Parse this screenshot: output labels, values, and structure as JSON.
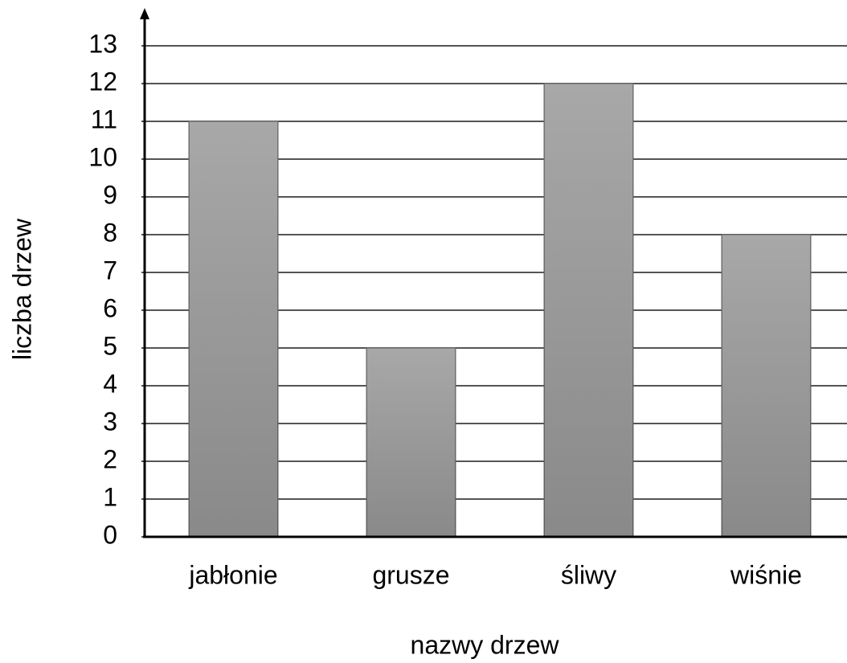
{
  "chart_data": {
    "type": "bar",
    "x_label": "nazwy drzew",
    "y_label": "liczba drzew",
    "categories": [
      "jabłonie",
      "grusze",
      "śliwy",
      "wiśnie"
    ],
    "values": [
      11,
      5,
      12,
      8
    ],
    "color": "#9c9c9c",
    "ylim": [
      0,
      13
    ],
    "yticks": [
      0,
      1,
      2,
      3,
      4,
      5,
      6,
      7,
      8,
      9,
      10,
      11,
      12,
      13
    ],
    "grid": true
  }
}
